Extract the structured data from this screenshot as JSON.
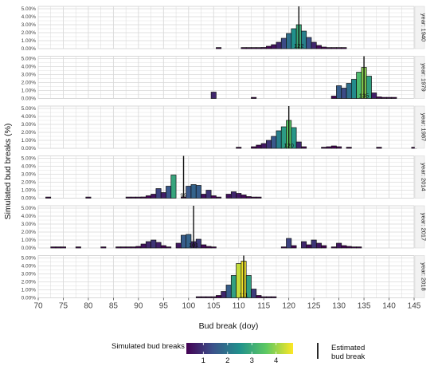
{
  "chart_data": {
    "type": "bar",
    "xlabel": "Bud break (doy)",
    "ylabel": "Simulated bud breaks (%)",
    "xlim": [
      70,
      145
    ],
    "x_ticks": [
      70,
      75,
      80,
      85,
      90,
      95,
      100,
      105,
      110,
      115,
      120,
      125,
      130,
      135,
      140,
      145
    ],
    "ylim": [
      0,
      5
    ],
    "y_tick_labels": [
      "0.00%",
      "1.00%",
      "2.00%",
      "3.00%",
      "4.00%",
      "5.00%"
    ],
    "grid": true,
    "panels": [
      {
        "strip": "year: 1940",
        "estimated_bud_break": 122,
        "bars": [
          [
            106,
            0.02
          ],
          [
            111,
            0.03
          ],
          [
            112,
            0.03
          ],
          [
            113,
            0.05
          ],
          [
            114,
            0.1
          ],
          [
            115,
            0.15
          ],
          [
            116,
            0.3
          ],
          [
            117,
            0.5
          ],
          [
            118,
            0.8
          ],
          [
            119,
            1.3
          ],
          [
            120,
            1.9
          ],
          [
            121,
            2.5
          ],
          [
            122,
            3.0
          ],
          [
            123,
            2.2
          ],
          [
            124,
            1.4
          ],
          [
            125,
            0.8
          ],
          [
            126,
            0.4
          ],
          [
            127,
            0.2
          ],
          [
            128,
            0.1
          ],
          [
            129,
            0.05
          ],
          [
            130,
            0.03
          ],
          [
            131,
            0.02
          ]
        ]
      },
      {
        "strip": "year: 1979",
        "estimated_bud_break": 135,
        "bars": [
          [
            105,
            0.8
          ],
          [
            113,
            0.1
          ],
          [
            129,
            0.3
          ],
          [
            130,
            1.6
          ],
          [
            131,
            1.3
          ],
          [
            132,
            1.9
          ],
          [
            133,
            2.4
          ],
          [
            134,
            3.3
          ],
          [
            135,
            3.9
          ],
          [
            136,
            2.8
          ],
          [
            137,
            0.7
          ],
          [
            138,
            0.2
          ],
          [
            139,
            0.1
          ],
          [
            140,
            0.05
          ],
          [
            141,
            0.02
          ]
        ]
      },
      {
        "strip": "year: 1987",
        "estimated_bud_break": 120,
        "bars": [
          [
            110,
            0.05
          ],
          [
            113,
            0.2
          ],
          [
            114,
            0.4
          ],
          [
            115,
            0.6
          ],
          [
            116,
            1.0
          ],
          [
            117,
            1.5
          ],
          [
            118,
            2.2
          ],
          [
            119,
            2.7
          ],
          [
            120,
            3.5
          ],
          [
            121,
            2.6
          ],
          [
            122,
            0.8
          ],
          [
            123,
            0.2
          ],
          [
            127,
            0.1
          ],
          [
            128,
            0.2
          ],
          [
            129,
            0.3
          ],
          [
            130,
            0.2
          ],
          [
            132,
            0.05
          ],
          [
            138,
            0.02
          ],
          [
            145,
            0.02
          ]
        ]
      },
      {
        "strip": "year: 2014",
        "estimated_bud_break": 99,
        "bars": [
          [
            72,
            0.02
          ],
          [
            80,
            0.02
          ],
          [
            88,
            0.03
          ],
          [
            89,
            0.05
          ],
          [
            90,
            0.1
          ],
          [
            91,
            0.15
          ],
          [
            92,
            0.3
          ],
          [
            93,
            0.5
          ],
          [
            94,
            1.2
          ],
          [
            95,
            0.7
          ],
          [
            96,
            1.5
          ],
          [
            97,
            2.9
          ],
          [
            99,
            0.15
          ],
          [
            100,
            1.5
          ],
          [
            101,
            1.7
          ],
          [
            102,
            1.6
          ],
          [
            103,
            0.5
          ],
          [
            104,
            1.0
          ],
          [
            105,
            0.3
          ],
          [
            106,
            0.05
          ],
          [
            108,
            0.5
          ],
          [
            109,
            0.8
          ],
          [
            110,
            0.6
          ],
          [
            111,
            0.4
          ],
          [
            112,
            0.2
          ],
          [
            113,
            0.1
          ],
          [
            114,
            0.05
          ]
        ]
      },
      {
        "strip": "year: 2017",
        "estimated_bud_break": 101,
        "bars": [
          [
            73,
            0.02
          ],
          [
            74,
            0.02
          ],
          [
            75,
            0.02
          ],
          [
            78,
            0.02
          ],
          [
            83,
            0.02
          ],
          [
            86,
            0.02
          ],
          [
            87,
            0.02
          ],
          [
            88,
            0.03
          ],
          [
            89,
            0.1
          ],
          [
            90,
            0.2
          ],
          [
            91,
            0.5
          ],
          [
            92,
            0.8
          ],
          [
            93,
            1.0
          ],
          [
            94,
            0.7
          ],
          [
            95,
            0.3
          ],
          [
            96,
            0.05
          ],
          [
            98,
            0.6
          ],
          [
            99,
            1.6
          ],
          [
            100,
            1.7
          ],
          [
            101,
            0.8
          ],
          [
            102,
            1.1
          ],
          [
            103,
            0.4
          ],
          [
            104,
            0.2
          ],
          [
            105,
            0.05
          ],
          [
            119,
            0.05
          ],
          [
            120,
            1.2
          ],
          [
            121,
            0.3
          ],
          [
            123,
            0.8
          ],
          [
            124,
            0.4
          ],
          [
            125,
            1.0
          ],
          [
            126,
            0.6
          ],
          [
            127,
            0.3
          ],
          [
            129,
            0.05
          ],
          [
            130,
            0.6
          ],
          [
            131,
            0.3
          ],
          [
            132,
            0.2
          ],
          [
            133,
            0.1
          ],
          [
            134,
            0.05
          ]
        ]
      },
      {
        "strip": "year: 2018",
        "estimated_bud_break": 111,
        "bars": [
          [
            102,
            0.02
          ],
          [
            103,
            0.03
          ],
          [
            104,
            0.05
          ],
          [
            105,
            0.1
          ],
          [
            106,
            0.3
          ],
          [
            107,
            0.8
          ],
          [
            108,
            1.6
          ],
          [
            109,
            2.8
          ],
          [
            110,
            4.3
          ],
          [
            111,
            4.6
          ],
          [
            112,
            2.8
          ],
          [
            113,
            1.1
          ],
          [
            114,
            0.3
          ],
          [
            115,
            0.1
          ],
          [
            116,
            0.05
          ],
          [
            117,
            0.02
          ]
        ]
      }
    ],
    "legend": {
      "fill_title": "Simulated bud breaks (%)",
      "fill_ticks": [
        "1",
        "2",
        "3",
        "4"
      ],
      "line_label": "Estimated bud break"
    },
    "colors": {
      "panel_bg": "#ffffff",
      "grid": "#d9d9d9",
      "strip_bg": "#f2f2f2",
      "bar_outline": "#111111",
      "viridis": [
        "#440154",
        "#3b528b",
        "#21918c",
        "#5ec962",
        "#fde725"
      ]
    }
  }
}
